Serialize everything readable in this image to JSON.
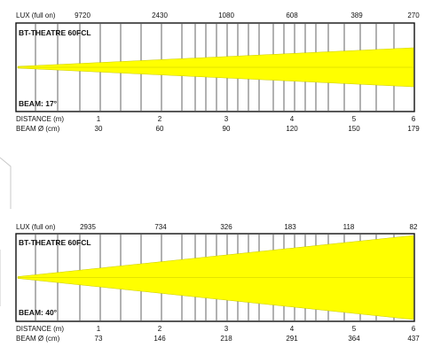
{
  "diagrams": [
    {
      "lux_label": "LUX (full on)",
      "lux_values": [
        "9720",
        "2430",
        "1080",
        "608",
        "389",
        "270"
      ],
      "fixture": "BT-THEATRE 60FCL",
      "beam_label": "BEAM: 17°",
      "beam_angle_deg": 17,
      "distance_label": "DISTANCE (m)",
      "distance_values": [
        "1",
        "2",
        "3",
        "4",
        "5",
        "6"
      ],
      "diameter_label": "BEAM  Ø  (cm)",
      "diameter_values": [
        "30",
        "60",
        "90",
        "120",
        "150",
        "179"
      ],
      "beam_color": "#ffff00"
    },
    {
      "lux_label": "LUX (full on)",
      "lux_values": [
        "2935",
        "734",
        "326",
        "183",
        "118",
        "82"
      ],
      "fixture": "BT-THEATRE 60FCL",
      "beam_label": "BEAM: 40°",
      "beam_angle_deg": 40,
      "distance_label": "DISTANCE (m)",
      "distance_values": [
        "1",
        "2",
        "3",
        "4",
        "5",
        "6"
      ],
      "diameter_label": "BEAM  Ø  (cm)",
      "diameter_values": [
        "73",
        "146",
        "218",
        "291",
        "364",
        "437"
      ],
      "beam_color": "#ffff00"
    }
  ]
}
